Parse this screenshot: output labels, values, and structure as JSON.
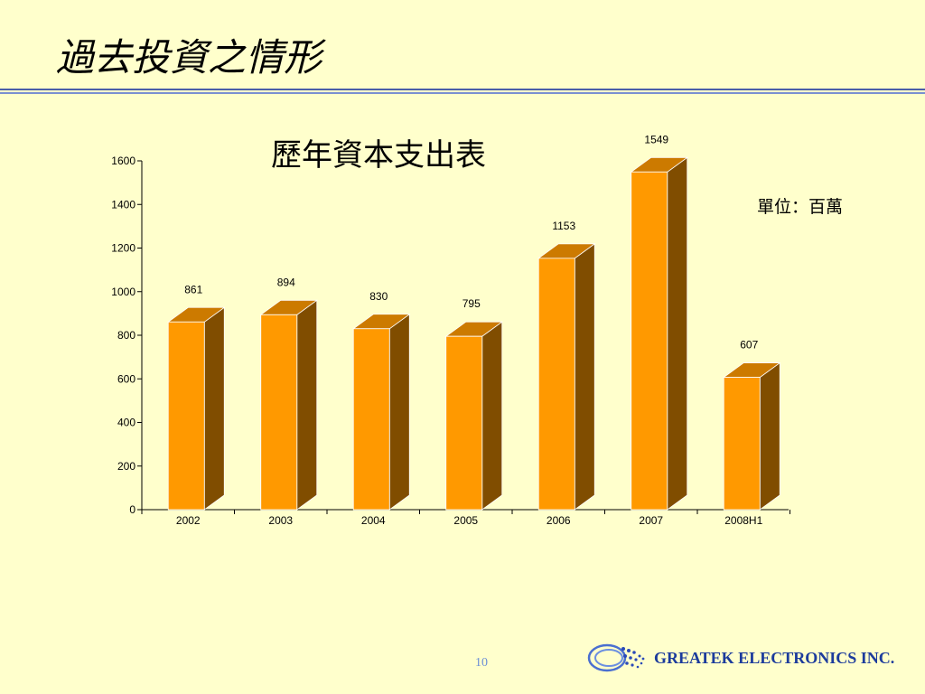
{
  "slide": {
    "title": "過去投資之情形",
    "page_number": "10",
    "company_name": "GREATEK ELECTRONICS INC."
  },
  "colors": {
    "background": "#ffffcc",
    "bar_front": "#ff9900",
    "bar_top": "#cc7a00",
    "bar_side": "#804d00",
    "divider": "#4a5fa8",
    "company_text": "#1c3b9c"
  },
  "chart_data": {
    "type": "bar",
    "title": "歷年資本支出表",
    "unit_label": "單位：百萬",
    "categories": [
      "2002",
      "2003",
      "2004",
      "2005",
      "2006",
      "2007",
      "2008H1"
    ],
    "values": [
      861,
      894,
      830,
      795,
      1153,
      1549,
      607
    ],
    "ylim": [
      0,
      1600
    ],
    "yticks": [
      0,
      200,
      400,
      600,
      800,
      1000,
      1200,
      1400,
      1600
    ],
    "grid": false,
    "legend": "none",
    "style": "3d-column"
  }
}
